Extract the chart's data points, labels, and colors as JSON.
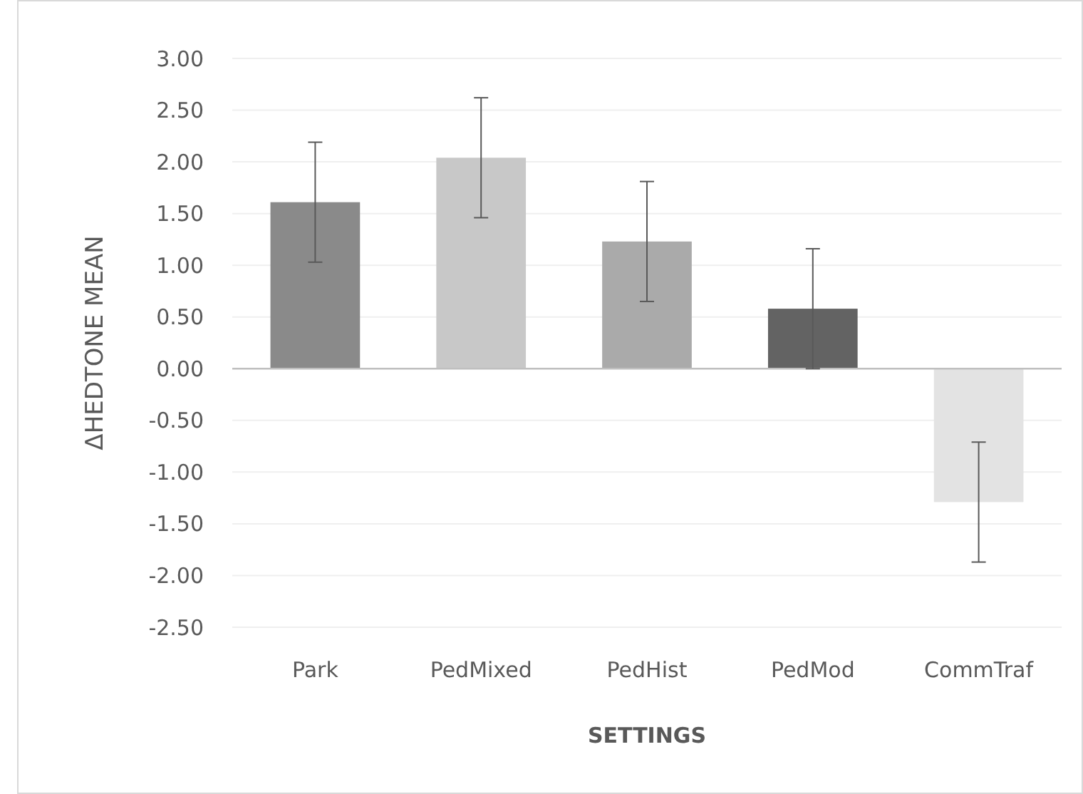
{
  "chart_data": {
    "type": "bar",
    "xlabel": "SETTINGS",
    "ylabel": "ΔHEDTONE MEAN",
    "categories": [
      "Park",
      "PedMixed",
      "PedHist",
      "PedMod",
      "CommTraf"
    ],
    "values": [
      1.61,
      2.04,
      1.23,
      0.58,
      -1.29
    ],
    "errors": [
      0.58,
      0.58,
      0.58,
      0.58,
      0.58
    ],
    "colors": [
      "#8a8a8a",
      "#c8c8c8",
      "#aaaaaa",
      "#636363",
      "#e3e3e3"
    ],
    "ylim": [
      -2.5,
      3
    ],
    "yticks": [
      {
        "value": -2.5,
        "label": "-2.50"
      },
      {
        "value": -2,
        "label": "-2.00"
      },
      {
        "value": -1.5,
        "label": "-1.50"
      },
      {
        "value": -1,
        "label": "-1.00"
      },
      {
        "value": -0.5,
        "label": "-0.50"
      },
      {
        "value": 0,
        "label": "0.00"
      },
      {
        "value": 0.5,
        "label": "0.50"
      },
      {
        "value": 1,
        "label": "1.00"
      },
      {
        "value": 1.5,
        "label": "1.50"
      },
      {
        "value": 2,
        "label": "2.00"
      },
      {
        "value": 2.5,
        "label": "2.50"
      },
      {
        "value": 3,
        "label": "3.00"
      }
    ],
    "grid": "y"
  }
}
